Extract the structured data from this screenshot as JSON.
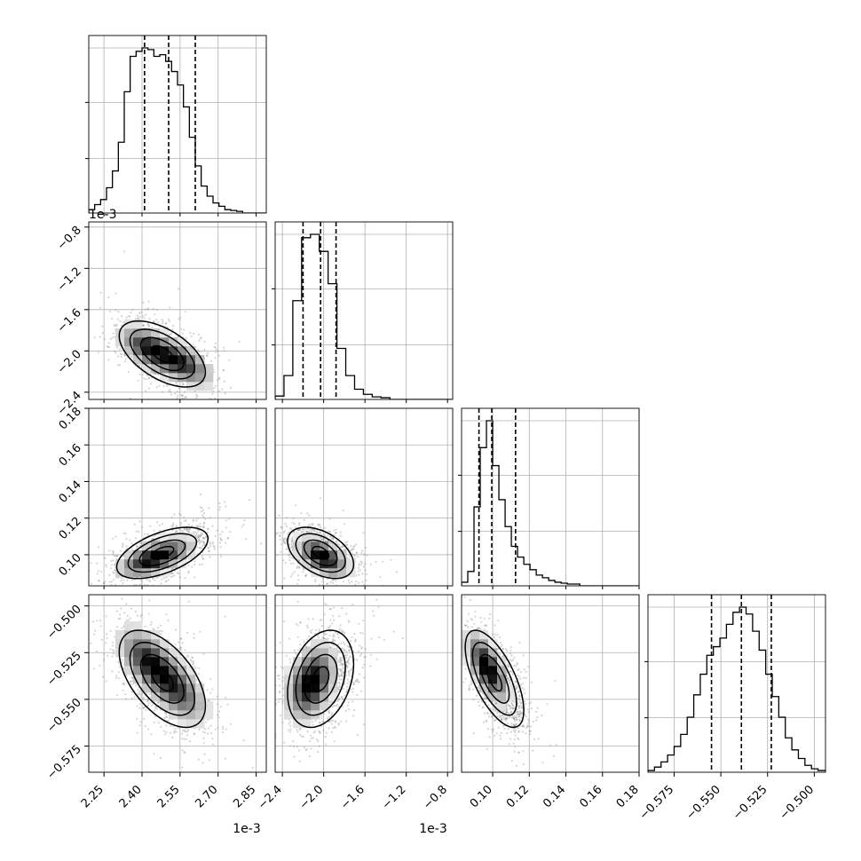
{
  "chart_data": {
    "type": "corner",
    "parameters": [
      {
        "index": 0,
        "range": [
          2.19,
          2.89
        ],
        "ticks": [
          2.25,
          2.4,
          2.55,
          2.7,
          2.85
        ],
        "tick_labels": [
          "2.25",
          "2.40",
          "2.55",
          "2.70",
          "2.85"
        ],
        "multiplier_label": "1e-3",
        "quantiles": [
          2.41,
          2.505,
          2.61
        ],
        "histogram": {
          "edges": [
            2.19,
            2.2133,
            2.2367,
            2.26,
            2.2833,
            2.3067,
            2.33,
            2.3533,
            2.3767,
            2.4,
            2.4233,
            2.4467,
            2.47,
            2.4933,
            2.5167,
            2.54,
            2.5633,
            2.5867,
            2.61,
            2.6333,
            2.6567,
            2.68,
            2.7033,
            2.7267,
            2.75,
            2.7733,
            2.7967,
            2.82,
            2.8433,
            2.8667,
            2.89
          ],
          "counts": [
            0.02,
            0.05,
            0.08,
            0.15,
            0.25,
            0.42,
            0.72,
            0.93,
            0.96,
            0.98,
            0.97,
            0.93,
            0.94,
            0.9,
            0.84,
            0.76,
            0.63,
            0.45,
            0.28,
            0.16,
            0.1,
            0.06,
            0.04,
            0.02,
            0.015,
            0.01,
            0,
            0,
            0,
            0
          ]
        }
      },
      {
        "index": 1,
        "range": [
          -2.47,
          -0.75
        ],
        "ticks": [
          -2.4,
          -2.0,
          -1.6,
          -1.2,
          -0.8
        ],
        "tick_labels": [
          "−2.4",
          "−2.0",
          "−1.6",
          "−1.2",
          "−0.8"
        ],
        "multiplier_label": "1e-3",
        "quantiles": [
          -2.2,
          -2.03,
          -1.88
        ],
        "histogram": {
          "edges": [
            -2.47,
            -2.3845,
            -2.299,
            -2.2135,
            -2.128,
            -2.0425,
            -1.957,
            -1.8715,
            -1.786,
            -1.7005,
            -1.615,
            -1.5295,
            -1.444,
            -1.3585,
            -1.273,
            -1.1875,
            -1.102,
            -1.0165,
            -0.931,
            -0.8455,
            -0.76
          ],
          "counts": [
            0.02,
            0.14,
            0.58,
            0.95,
            0.97,
            0.87,
            0.68,
            0.3,
            0.14,
            0.06,
            0.03,
            0.015,
            0.01,
            0,
            0,
            0,
            0,
            0,
            0,
            0
          ]
        }
      },
      {
        "index": 2,
        "range": [
          0.083,
          0.18
        ],
        "ticks": [
          0.1,
          0.12,
          0.14,
          0.16,
          0.18
        ],
        "tick_labels": [
          "0.10",
          "0.12",
          "0.14",
          "0.16",
          "0.18"
        ],
        "quantiles": [
          0.0925,
          0.0995,
          0.1125
        ],
        "histogram": {
          "edges": [
            0.083,
            0.0864,
            0.0898,
            0.0932,
            0.0966,
            0.1,
            0.1034,
            0.1068,
            0.1102,
            0.1136,
            0.117,
            0.1204,
            0.1238,
            0.1272,
            0.1306,
            0.134,
            0.1374,
            0.1408,
            0.1442,
            0.1476,
            0.151,
            0.1544,
            0.1578,
            0.1612,
            0.1646,
            0.168,
            0.1714,
            0.1748,
            0.1782,
            0.18
          ],
          "counts": [
            0.02,
            0.08,
            0.44,
            0.77,
            0.92,
            0.67,
            0.48,
            0.33,
            0.22,
            0.16,
            0.12,
            0.09,
            0.06,
            0.045,
            0.03,
            0.02,
            0.015,
            0.01,
            0.01,
            0,
            0,
            0,
            0,
            0,
            0,
            0,
            0,
            0,
            0
          ]
        }
      },
      {
        "index": 3,
        "range": [
          -0.589,
          -0.494
        ],
        "ticks": [
          -0.575,
          -0.55,
          -0.525,
          -0.5
        ],
        "tick_labels": [
          "−0.575",
          "−0.550",
          "−0.525",
          "−0.500"
        ],
        "quantiles": [
          -0.555,
          -0.539,
          -0.523
        ],
        "histogram": {
          "edges": [
            -0.589,
            -0.5855,
            -0.582,
            -0.5785,
            -0.575,
            -0.5715,
            -0.568,
            -0.5645,
            -0.561,
            -0.5575,
            -0.554,
            -0.5505,
            -0.547,
            -0.5435,
            -0.54,
            -0.5365,
            -0.533,
            -0.5295,
            -0.526,
            -0.5225,
            -0.519,
            -0.5155,
            -0.512,
            -0.5085,
            -0.505,
            -0.5015,
            -0.498,
            -0.494
          ],
          "counts": [
            0.01,
            0.03,
            0.06,
            0.1,
            0.15,
            0.22,
            0.32,
            0.45,
            0.57,
            0.68,
            0.73,
            0.78,
            0.86,
            0.93,
            0.96,
            0.92,
            0.82,
            0.71,
            0.57,
            0.44,
            0.32,
            0.2,
            0.13,
            0.08,
            0.04,
            0.02,
            0.01
          ]
        }
      }
    ],
    "pairs": [
      {
        "x_param": 0,
        "y_param": 1,
        "center": [
          2.48,
          -2.03
        ],
        "sigma": [
          0.085,
          0.16
        ],
        "rho": -0.55,
        "modes": [
          {
            "at": [
              2.43,
              -1.98
            ],
            "weight": 1.0
          },
          {
            "at": [
              2.56,
              -2.12
            ],
            "weight": 0.9
          }
        ]
      },
      {
        "x_param": 0,
        "y_param": 2,
        "center": [
          2.48,
          0.101
        ],
        "sigma": [
          0.09,
          0.007
        ],
        "rho": 0.55,
        "modes": [
          {
            "at": [
              2.42,
              0.097
            ],
            "weight": 1.0
          },
          {
            "at": [
              2.49,
              0.1
            ],
            "weight": 0.9
          }
        ]
      },
      {
        "x_param": 1,
        "y_param": 2,
        "center": [
          -2.03,
          0.101
        ],
        "sigma": [
          0.16,
          0.007
        ],
        "rho": -0.45,
        "modes": [
          {
            "at": [
              -2.05,
              0.1
            ],
            "weight": 1.0
          },
          {
            "at": [
              -1.95,
              0.097
            ],
            "weight": 0.7
          }
        ]
      },
      {
        "x_param": 0,
        "y_param": 3,
        "center": [
          2.48,
          -0.539
        ],
        "sigma": [
          0.085,
          0.013
        ],
        "rho": -0.55,
        "modes": [
          {
            "at": [
              2.43,
              -0.53
            ],
            "weight": 1.0
          },
          {
            "at": [
              2.54,
              -0.545
            ],
            "weight": 0.8
          }
        ]
      },
      {
        "x_param": 1,
        "y_param": 3,
        "center": [
          -2.03,
          -0.539
        ],
        "sigma": [
          0.16,
          0.013
        ],
        "rho": 0.3,
        "modes": [
          {
            "at": [
              -2.1,
              -0.538
            ],
            "weight": 1.0
          },
          {
            "at": [
              -2.15,
              -0.545
            ],
            "weight": 0.8
          }
        ]
      },
      {
        "x_param": 2,
        "y_param": 3,
        "center": [
          0.101,
          -0.539
        ],
        "sigma": [
          0.008,
          0.013
        ],
        "rho": -0.65,
        "modes": [
          {
            "at": [
              0.097,
              -0.533
            ],
            "weight": 1.0
          }
        ]
      }
    ],
    "contour_levels_sigma": [
      0.5,
      1.0,
      1.5,
      2.0
    ],
    "grid": true,
    "colors": {
      "line": "#000000",
      "grid": "#b0b0b0",
      "points": "#888888",
      "background": "#ffffff"
    }
  }
}
